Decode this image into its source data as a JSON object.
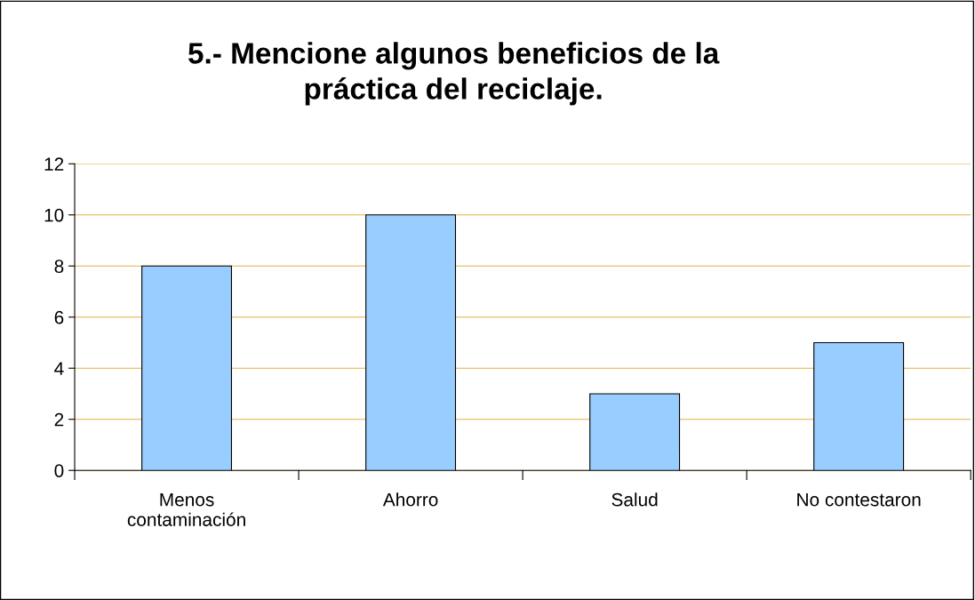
{
  "chart_data": {
    "type": "bar",
    "title": "5.- Mencione algunos beneficios de la\npráctica del reciclaje.",
    "categories": [
      "Menos\ncontaminación",
      "Ahorro",
      "Salud",
      "No contestaron"
    ],
    "values": [
      8,
      10,
      3,
      5
    ],
    "color": "#99ccff",
    "ylim": [
      0,
      12
    ],
    "yticks": [
      0,
      2,
      4,
      6,
      8,
      10,
      12
    ],
    "grid": "y",
    "legend": false
  }
}
